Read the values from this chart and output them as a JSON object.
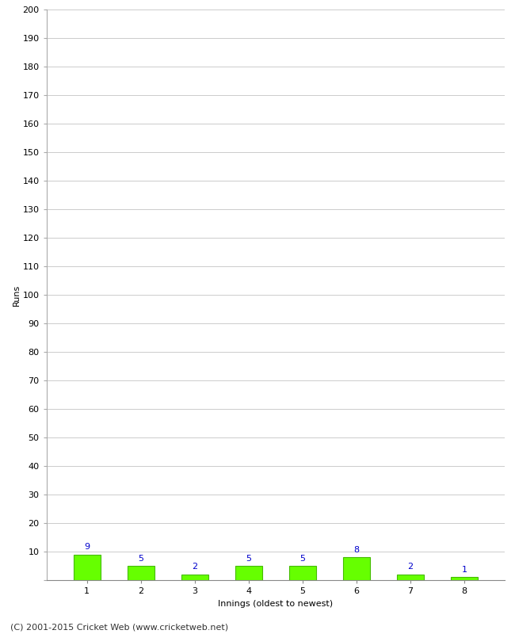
{
  "title": "",
  "xlabel": "Innings (oldest to newest)",
  "ylabel": "Runs",
  "categories": [
    1,
    2,
    3,
    4,
    5,
    6,
    7,
    8
  ],
  "values": [
    9,
    5,
    2,
    5,
    5,
    8,
    2,
    1
  ],
  "bar_color": "#66ff00",
  "bar_edge_color": "#44bb00",
  "label_color": "#0000cc",
  "ylim": [
    0,
    200
  ],
  "ytick_step": 10,
  "background_color": "#ffffff",
  "grid_color": "#cccccc",
  "footer": "(C) 2001-2015 Cricket Web (www.cricketweb.net)",
  "axis_fontsize": 8,
  "tick_fontsize": 8,
  "label_fontsize": 8,
  "footer_fontsize": 8
}
